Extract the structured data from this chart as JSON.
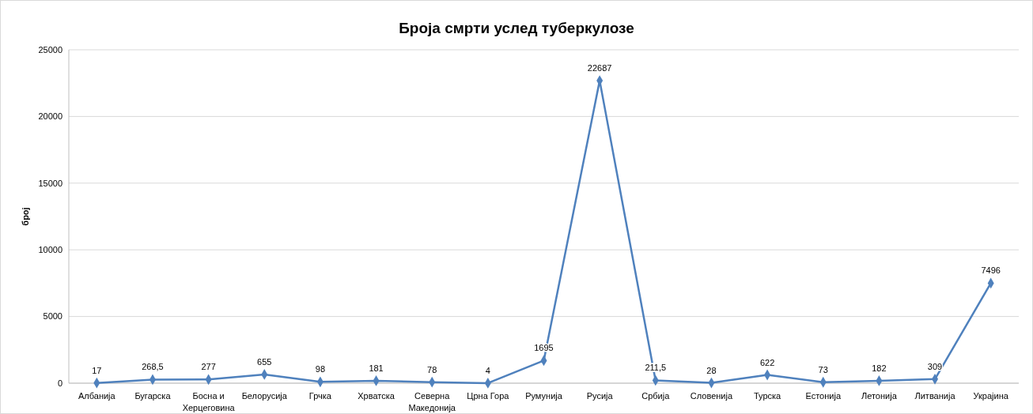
{
  "chart_data": {
    "type": "line",
    "title": "Броја смрти услед туберкулозе",
    "ylabel": "број",
    "categories": [
      "Албанија",
      "Бугарска",
      "Босна и Херцеговина",
      "Белорусија",
      "Грчка",
      "Хрватска",
      "Северна Македонија",
      "Црна Гора",
      "Румунија",
      "Русија",
      "Србија",
      "Словенија",
      "Турска",
      "Естонија",
      "Летонија",
      "Литванија",
      "Украјина"
    ],
    "series": [
      {
        "color": "#4f81bd",
        "values": [
          17,
          268.5,
          277,
          655,
          98,
          181,
          78,
          4,
          1695,
          22687,
          211.5,
          28,
          622,
          73,
          182,
          309,
          7496
        ],
        "value_labels": [
          "17",
          "268,5",
          "277",
          "655",
          "98",
          "181",
          "78",
          "4",
          "1695",
          "22687",
          "211,5",
          "28",
          "622",
          "73",
          "182",
          "309",
          "7496"
        ]
      }
    ],
    "ylim": [
      0,
      25000
    ],
    "yticks": [
      0,
      5000,
      10000,
      15000,
      20000,
      25000
    ],
    "grid": "y",
    "marker": "diamond",
    "line_style": "solid"
  }
}
